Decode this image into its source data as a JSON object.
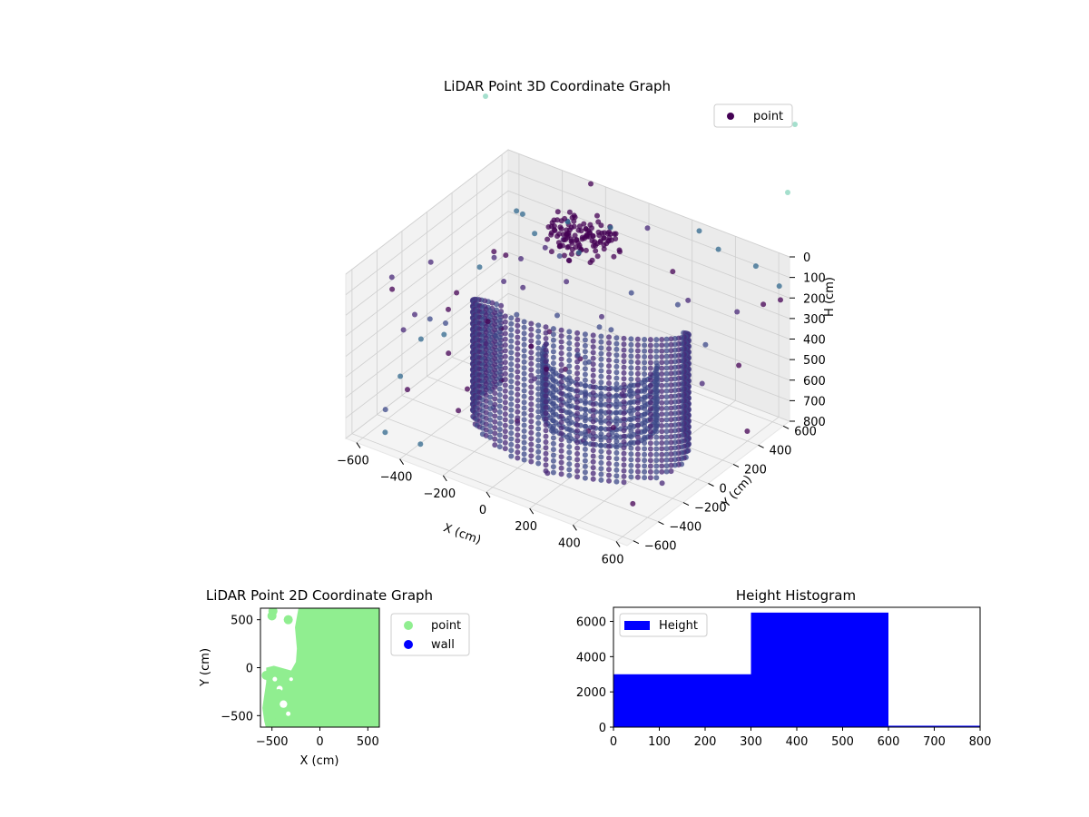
{
  "chart_data": [
    {
      "type": "scatter",
      "title": "LiDAR Point 3D Coordinate Graph",
      "xlabel": "X (cm)",
      "ylabel": "Y (cm)",
      "zlabel": "H (cm)",
      "xlim": [
        -650,
        650
      ],
      "ylim": [
        -650,
        650
      ],
      "zlim": [
        0,
        800
      ],
      "z_inverted": true,
      "xticks": [
        -600,
        -400,
        -200,
        0,
        200,
        400,
        600
      ],
      "yticks": [
        -600,
        -400,
        -200,
        0,
        200,
        400,
        600
      ],
      "zticks": [
        0,
        100,
        200,
        300,
        400,
        500,
        600,
        700,
        800
      ],
      "grid": true,
      "legend": {
        "entries": [
          "point"
        ],
        "position": "top-right"
      },
      "colormap": [
        "#440154",
        "#482878",
        "#3e4989",
        "#31688e",
        "#26828e",
        "#35b779",
        "#8fd7c0"
      ],
      "shape": "curved wall of vertical point columns arcing around the scene",
      "points": [
        {
          "x": -560,
          "y": 560,
          "h": 220
        },
        {
          "x": -520,
          "y": 540,
          "h": 210
        },
        {
          "x": -430,
          "y": 480,
          "h": 240
        },
        {
          "x": -300,
          "y": 520,
          "h": 150
        },
        {
          "x": -620,
          "y": -100,
          "h": 560
        },
        {
          "x": -600,
          "y": -300,
          "h": 640
        },
        {
          "x": -580,
          "y": 300,
          "h": 380
        },
        {
          "x": -150,
          "y": 350,
          "h": 160
        },
        {
          "x": 250,
          "y": 620,
          "h": 20
        },
        {
          "x": 350,
          "y": 600,
          "h": 60
        },
        {
          "x": 500,
          "y": 640,
          "h": 100
        },
        {
          "x": 620,
          "y": 620,
          "h": 140
        },
        {
          "x": -520,
          "y": -560,
          "h": 760
        },
        {
          "x": -380,
          "y": -520,
          "h": 780
        },
        {
          "x": -600,
          "y": 50,
          "h": 600
        },
        {
          "x": -120,
          "y": 550,
          "h": 120
        }
      ]
    },
    {
      "type": "scatter",
      "title": "LiDAR Point 2D Coordinate Graph",
      "xlabel": "X (cm)",
      "ylabel": "Y (cm)",
      "xlim": [
        -620,
        620
      ],
      "ylim": [
        -620,
        620
      ],
      "xticks": [
        -500,
        0,
        500
      ],
      "yticks": [
        -500,
        0,
        500
      ],
      "series": [
        {
          "name": "point",
          "color": "#90ee90"
        },
        {
          "name": "wall",
          "color": "#0000ff"
        }
      ],
      "legend": {
        "entries": [
          "point",
          "wall"
        ],
        "position": "outside-right"
      }
    },
    {
      "type": "bar",
      "title": "Height Histogram",
      "xlim": [
        0,
        800
      ],
      "ylim": [
        0,
        6800
      ],
      "xticks": [
        0,
        100,
        200,
        300,
        400,
        500,
        600,
        700,
        800
      ],
      "yticks": [
        0,
        2000,
        4000,
        6000
      ],
      "bins": [
        {
          "from": 0,
          "to": 300,
          "count": 3000
        },
        {
          "from": 300,
          "to": 600,
          "count": 6500
        },
        {
          "from": 600,
          "to": 800,
          "count": 80
        }
      ],
      "series": [
        {
          "name": "Height",
          "color": "#0000ff"
        }
      ],
      "legend": {
        "entries": [
          "Height"
        ],
        "position": "top-left"
      }
    }
  ]
}
